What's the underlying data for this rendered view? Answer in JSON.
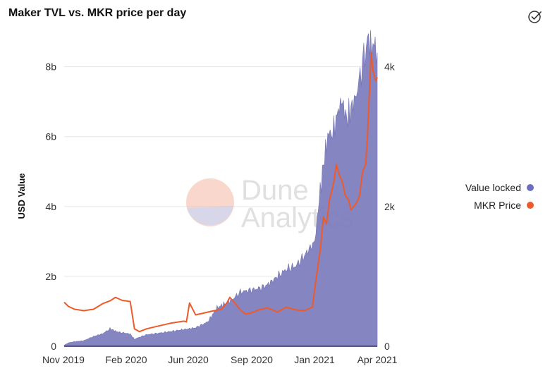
{
  "colors": {
    "value_locked": "#7f7fbf",
    "value_locked_edge": "#6f6fb3",
    "mkr_price": "#ee5a2a",
    "axis": "#2d2d66",
    "grid": "#e6e6e6"
  },
  "icons": {
    "header_action": "check-circle-icon"
  },
  "watermark": {
    "line1": "Dune",
    "line2": "Analytics"
  },
  "chart_data": {
    "type": "area",
    "title": "Maker TVL vs. MKR price per day",
    "ylabel": "USD Value",
    "ylim": [
      0,
      8800000000
    ],
    "y2lim": [
      0,
      4400
    ],
    "yticks": [
      {
        "value": 0,
        "label": "0"
      },
      {
        "value": 2000000000,
        "label": "2b"
      },
      {
        "value": 4000000000,
        "label": "4b"
      },
      {
        "value": 6000000000,
        "label": "6b"
      },
      {
        "value": 8000000000,
        "label": "8b"
      }
    ],
    "y2ticks": [
      {
        "value": 0,
        "label": "0"
      },
      {
        "value": 2000,
        "label": "2k"
      },
      {
        "value": 4000,
        "label": "4k"
      }
    ],
    "xlim": [
      "2019-11-18",
      "2021-04-13"
    ],
    "xticks": [
      {
        "date": "2019-11-01",
        "label": "Nov 2019"
      },
      {
        "date": "2020-02-01",
        "label": "Feb 2020"
      },
      {
        "date": "2020-06-01",
        "label": "Jun 2020"
      },
      {
        "date": "2020-09-01",
        "label": "Sep 2020"
      },
      {
        "date": "2021-01-01",
        "label": "Jan 2021"
      },
      {
        "date": "2021-04-01",
        "label": "Apr 2021"
      }
    ],
    "legend_position": "right",
    "grid": true,
    "series": [
      {
        "name": "Value locked",
        "axis": "left",
        "type": "area",
        "points": [
          [
            "2019-11-18",
            30000000
          ],
          [
            "2019-11-25",
            100000000
          ],
          [
            "2019-12-05",
            130000000
          ],
          [
            "2019-12-20",
            160000000
          ],
          [
            "2020-01-05",
            280000000
          ],
          [
            "2020-01-20",
            360000000
          ],
          [
            "2020-02-01",
            500000000
          ],
          [
            "2020-02-08",
            450000000
          ],
          [
            "2020-02-15",
            400000000
          ],
          [
            "2020-02-25",
            380000000
          ],
          [
            "2020-03-05",
            350000000
          ],
          [
            "2020-03-12",
            200000000
          ],
          [
            "2020-03-20",
            260000000
          ],
          [
            "2020-04-01",
            330000000
          ],
          [
            "2020-05-01",
            400000000
          ],
          [
            "2020-06-01",
            480000000
          ],
          [
            "2020-06-20",
            530000000
          ],
          [
            "2020-07-10",
            700000000
          ],
          [
            "2020-07-25",
            1100000000
          ],
          [
            "2020-08-05",
            1200000000
          ],
          [
            "2020-08-20",
            1350000000
          ],
          [
            "2020-09-01",
            1550000000
          ],
          [
            "2020-09-15",
            1600000000
          ],
          [
            "2020-10-01",
            1650000000
          ],
          [
            "2020-10-15",
            1750000000
          ],
          [
            "2020-11-01",
            2000000000
          ],
          [
            "2020-11-15",
            2200000000
          ],
          [
            "2020-12-01",
            2300000000
          ],
          [
            "2020-12-15",
            2600000000
          ],
          [
            "2021-01-01",
            3000000000
          ],
          [
            "2021-01-08",
            4200000000
          ],
          [
            "2021-01-15",
            5200000000
          ],
          [
            "2021-01-22",
            6000000000
          ],
          [
            "2021-02-01",
            6200000000
          ],
          [
            "2021-02-10",
            6900000000
          ],
          [
            "2021-02-15",
            7000000000
          ],
          [
            "2021-02-22",
            6500000000
          ],
          [
            "2021-03-01",
            6800000000
          ],
          [
            "2021-03-10",
            7200000000
          ],
          [
            "2021-03-20",
            8100000000
          ],
          [
            "2021-03-28",
            8700000000
          ],
          [
            "2021-04-02",
            8700000000
          ],
          [
            "2021-04-08",
            8600000000
          ],
          [
            "2021-04-13",
            8400000000
          ]
        ]
      },
      {
        "name": "MKR Price",
        "axis": "right",
        "type": "line",
        "points": [
          [
            "2019-11-18",
            630
          ],
          [
            "2019-11-25",
            570
          ],
          [
            "2019-12-05",
            530
          ],
          [
            "2019-12-20",
            510
          ],
          [
            "2020-01-05",
            530
          ],
          [
            "2020-01-20",
            610
          ],
          [
            "2020-02-01",
            650
          ],
          [
            "2020-02-10",
            700
          ],
          [
            "2020-02-20",
            660
          ],
          [
            "2020-03-05",
            640
          ],
          [
            "2020-03-12",
            250
          ],
          [
            "2020-03-20",
            210
          ],
          [
            "2020-04-01",
            250
          ],
          [
            "2020-04-20",
            290
          ],
          [
            "2020-05-10",
            330
          ],
          [
            "2020-05-25",
            350
          ],
          [
            "2020-06-01",
            360
          ],
          [
            "2020-06-05",
            350
          ],
          [
            "2020-06-10",
            620
          ],
          [
            "2020-06-20",
            450
          ],
          [
            "2020-07-01",
            470
          ],
          [
            "2020-07-15",
            500
          ],
          [
            "2020-08-01",
            530
          ],
          [
            "2020-08-10",
            620
          ],
          [
            "2020-08-15",
            700
          ],
          [
            "2020-08-25",
            600
          ],
          [
            "2020-09-01",
            520
          ],
          [
            "2020-09-10",
            460
          ],
          [
            "2020-09-20",
            480
          ],
          [
            "2020-10-01",
            520
          ],
          [
            "2020-10-15",
            550
          ],
          [
            "2020-11-01",
            490
          ],
          [
            "2020-11-15",
            560
          ],
          [
            "2020-12-01",
            520
          ],
          [
            "2020-12-15",
            510
          ],
          [
            "2020-12-28",
            560
          ],
          [
            "2021-01-02",
            900
          ],
          [
            "2021-01-06",
            1150
          ],
          [
            "2021-01-10",
            1400
          ],
          [
            "2021-01-15",
            1850
          ],
          [
            "2021-01-20",
            1750
          ],
          [
            "2021-01-25",
            2100
          ],
          [
            "2021-02-01",
            2350
          ],
          [
            "2021-02-05",
            2600
          ],
          [
            "2021-02-10",
            2450
          ],
          [
            "2021-02-15",
            2350
          ],
          [
            "2021-02-20",
            2150
          ],
          [
            "2021-02-25",
            2100
          ],
          [
            "2021-03-01",
            1950
          ],
          [
            "2021-03-10",
            2050
          ],
          [
            "2021-03-15",
            2150
          ],
          [
            "2021-03-20",
            2500
          ],
          [
            "2021-03-25",
            2600
          ],
          [
            "2021-03-28",
            3000
          ],
          [
            "2021-04-01",
            3800
          ],
          [
            "2021-04-03",
            4200
          ],
          [
            "2021-04-06",
            3950
          ],
          [
            "2021-04-10",
            3800
          ],
          [
            "2021-04-13",
            3850
          ]
        ]
      }
    ]
  }
}
